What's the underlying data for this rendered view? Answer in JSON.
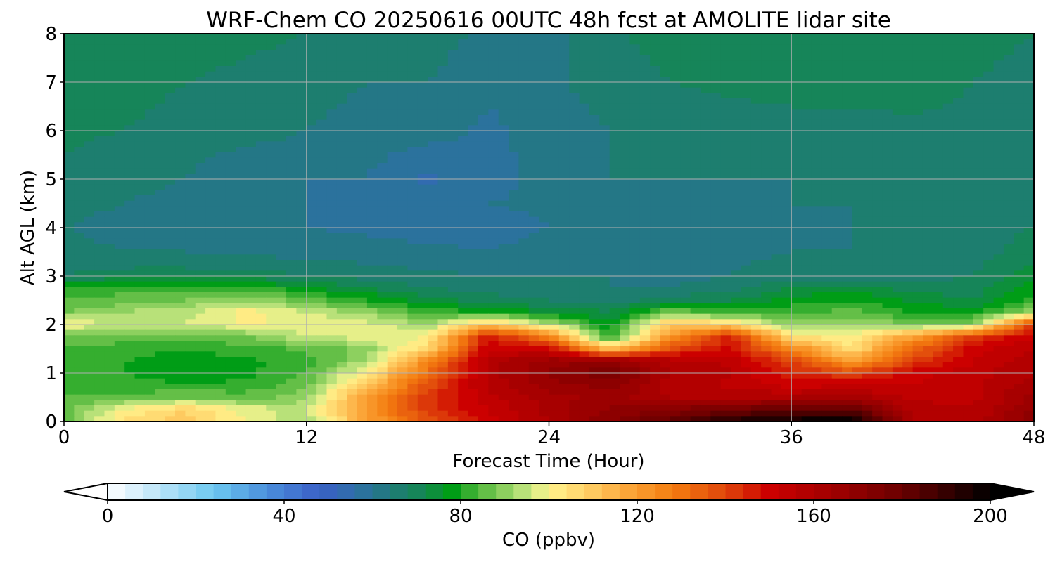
{
  "chart_data": {
    "type": "heatmap",
    "title": "WRF-Chem CO  20250616 00UTC 48h fcst at AMOLITE lidar site",
    "xlabel": "Forecast Time (Hour)",
    "ylabel": "Alt AGL (km)",
    "xlim": [
      0,
      48
    ],
    "ylim": [
      0,
      8
    ],
    "x_ticks": [
      "0",
      "12",
      "24",
      "36",
      "48"
    ],
    "y_ticks": [
      "0",
      "1",
      "2",
      "3",
      "4",
      "5",
      "6",
      "7",
      "8"
    ],
    "grid": true,
    "field": {
      "x": [
        0,
        3,
        6,
        9,
        12,
        15,
        18,
        21,
        24,
        27,
        30,
        33,
        36,
        39,
        42,
        45,
        48
      ],
      "y": [
        0,
        0.25,
        0.5,
        0.75,
        1,
        1.25,
        1.5,
        1.75,
        2,
        2.25,
        2.5,
        2.75,
        3,
        3.5,
        4,
        4.5,
        5,
        6,
        7,
        8
      ],
      "values": [
        [
          86,
          105,
          110,
          100,
          92,
          118,
          138,
          150,
          160,
          172,
          182,
          196,
          200,
          200,
          160,
          158,
          172
        ],
        [
          85,
          100,
          108,
          98,
          95,
          122,
          142,
          152,
          162,
          168,
          172,
          176,
          182,
          182,
          158,
          156,
          168
        ],
        [
          84,
          85,
          88,
          86,
          90,
          120,
          142,
          155,
          162,
          166,
          160,
          158,
          160,
          162,
          155,
          155,
          165
        ],
        [
          83,
          82,
          80,
          81,
          87,
          112,
          138,
          157,
          166,
          170,
          158,
          155,
          150,
          152,
          152,
          155,
          162
        ],
        [
          82,
          80,
          78,
          79,
          84,
          102,
          132,
          158,
          168,
          176,
          160,
          156,
          145,
          140,
          150,
          154,
          160
        ],
        [
          82,
          80,
          78,
          79,
          82,
          92,
          125,
          158,
          166,
          168,
          158,
          155,
          140,
          118,
          140,
          152,
          158
        ],
        [
          84,
          82,
          80,
          82,
          85,
          90,
          108,
          152,
          150,
          112,
          138,
          150,
          125,
          105,
          132,
          150,
          156
        ],
        [
          88,
          86,
          86,
          88,
          95,
          98,
          100,
          148,
          128,
          80,
          122,
          146,
          105,
          100,
          120,
          142,
          152
        ],
        [
          100,
          95,
          96,
          100,
          100,
          98,
          92,
          112,
          95,
          77,
          112,
          108,
          90,
          92,
          88,
          90,
          145
        ],
        [
          88,
          92,
          95,
          102,
          96,
          90,
          82,
          80,
          75,
          72,
          88,
          82,
          82,
          86,
          80,
          78,
          90
        ],
        [
          84,
          86,
          88,
          92,
          86,
          80,
          74,
          70,
          68,
          66,
          70,
          72,
          78,
          80,
          75,
          72,
          82
        ],
        [
          80,
          82,
          82,
          82,
          77,
          72,
          68,
          66,
          65,
          64,
          64,
          66,
          72,
          74,
          70,
          70,
          78
        ],
        [
          68,
          70,
          70,
          70,
          68,
          66,
          65,
          64,
          64,
          64,
          63,
          64,
          66,
          66,
          66,
          68,
          74
        ],
        [
          65,
          64,
          64,
          63,
          62,
          62,
          61,
          60,
          62,
          64,
          63,
          63,
          64,
          64,
          64,
          66,
          70
        ],
        [
          64,
          63,
          63,
          62,
          60,
          59,
          58,
          58,
          60,
          63,
          63,
          62,
          63,
          64,
          64,
          66,
          68
        ],
        [
          65,
          64,
          63,
          62,
          60,
          59,
          58,
          60,
          61,
          63,
          63,
          63,
          64,
          64,
          64,
          65,
          66
        ],
        [
          67,
          65,
          64,
          60,
          60,
          60,
          55,
          58,
          62,
          64,
          64,
          64,
          64,
          65,
          65,
          65,
          65
        ],
        [
          69,
          68,
          66,
          66,
          64,
          62,
          62,
          59,
          62,
          64,
          65,
          66,
          66,
          66,
          67,
          67,
          64
        ],
        [
          71,
          70,
          68,
          67,
          66,
          64,
          64,
          61,
          63,
          66,
          68,
          69,
          70,
          70,
          70,
          68,
          66
        ],
        [
          72,
          71,
          70,
          69,
          68,
          66,
          66,
          63,
          63,
          67,
          70,
          71,
          72,
          71,
          72,
          70,
          68
        ]
      ]
    },
    "colorbar": {
      "label": "CO  (ppbv)",
      "vmin": 0,
      "vmax": 200,
      "step": 4,
      "extend": "both",
      "ticks": [
        "0",
        "40",
        "80",
        "120",
        "160",
        "200"
      ],
      "tick_values": [
        0,
        40,
        80,
        120,
        160,
        200
      ]
    }
  },
  "colormap": [
    {
      "v": 0,
      "c": "#ffffff"
    },
    {
      "v": 12,
      "c": "#b9e3f8"
    },
    {
      "v": 24,
      "c": "#6cc8f0"
    },
    {
      "v": 36,
      "c": "#4b8fdb"
    },
    {
      "v": 48,
      "c": "#3a5fc6"
    },
    {
      "v": 56,
      "c": "#2f6fa8"
    },
    {
      "v": 64,
      "c": "#207a7a"
    },
    {
      "v": 72,
      "c": "#13884e"
    },
    {
      "v": 78,
      "c": "#009d16"
    },
    {
      "v": 84,
      "c": "#4fb63b"
    },
    {
      "v": 90,
      "c": "#8dd05f"
    },
    {
      "v": 96,
      "c": "#cdea86"
    },
    {
      "v": 100,
      "c": "#fff38c"
    },
    {
      "v": 108,
      "c": "#ffd36a"
    },
    {
      "v": 118,
      "c": "#fba538"
    },
    {
      "v": 128,
      "c": "#f47d10"
    },
    {
      "v": 140,
      "c": "#e0460b"
    },
    {
      "v": 150,
      "c": "#cc0000"
    },
    {
      "v": 165,
      "c": "#9e0000"
    },
    {
      "v": 180,
      "c": "#6a0000"
    },
    {
      "v": 192,
      "c": "#2a0000"
    },
    {
      "v": 200,
      "c": "#000000"
    }
  ]
}
